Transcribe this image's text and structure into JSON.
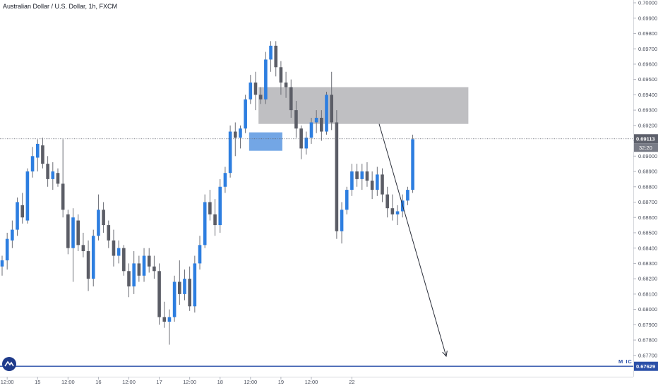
{
  "header": {
    "title": "Australian Dollar / U.S. Dollar, 1h, FXCM"
  },
  "colors": {
    "up": "#2d7ee0",
    "down": "#5b5d66",
    "wick": "#6b6d75",
    "price_line": "#5d606b",
    "support_line": "#2a4fa8",
    "zone": "#a9aaad",
    "box": "#5a97e0"
  },
  "price_tag": {
    "value": "0.69113",
    "countdown": "32:20"
  },
  "support_tag": {
    "value": "0.67629"
  },
  "annotation": {
    "text": "M IC"
  },
  "chart_data": {
    "type": "candlestick",
    "symbol": "Australian Dollar / U.S. Dollar",
    "interval": "1h",
    "source": "FXCM",
    "ylim": [
      0.6763,
      0.7
    ],
    "y_ticks": [
      "0.70000",
      "0.69900",
      "0.69800",
      "0.69700",
      "0.69600",
      "0.69500",
      "0.69400",
      "0.69300",
      "0.69200",
      "0.69100",
      "0.69000",
      "0.68900",
      "0.68800",
      "0.68700",
      "0.68600",
      "0.68500",
      "0.68400",
      "0.68300",
      "0.68200",
      "0.68100",
      "0.68000",
      "0.67900",
      "0.67800",
      "0.67700"
    ],
    "x_ticks": [
      {
        "label": "12:00",
        "bar": 1
      },
      {
        "label": "15",
        "bar": 7
      },
      {
        "label": "12:00",
        "bar": 13
      },
      {
        "label": "16",
        "bar": 19
      },
      {
        "label": "12:00",
        "bar": 25
      },
      {
        "label": "17",
        "bar": 31
      },
      {
        "label": "12:00",
        "bar": 37
      },
      {
        "label": "18",
        "bar": 43
      },
      {
        "label": "12:00",
        "bar": 49
      },
      {
        "label": "19",
        "bar": 55
      },
      {
        "label": "12:00",
        "bar": 61
      },
      {
        "label": "22",
        "bar": 69
      }
    ],
    "bar_count_visible": 74,
    "candles": [
      [
        0.6828,
        0.6835,
        0.6822,
        0.6832
      ],
      [
        0.6832,
        0.685,
        0.6826,
        0.6846
      ],
      [
        0.6845,
        0.6858,
        0.684,
        0.6852
      ],
      [
        0.6852,
        0.6873,
        0.6848,
        0.687
      ],
      [
        0.6868,
        0.6876,
        0.6856,
        0.686
      ],
      [
        0.6858,
        0.6892,
        0.6856,
        0.689
      ],
      [
        0.689,
        0.6906,
        0.6886,
        0.69
      ],
      [
        0.6899,
        0.6911,
        0.689,
        0.6908
      ],
      [
        0.6907,
        0.6912,
        0.6892,
        0.6895
      ],
      [
        0.6895,
        0.69,
        0.688,
        0.6885
      ],
      [
        0.6885,
        0.6896,
        0.6878,
        0.689
      ],
      [
        0.6889,
        0.6892,
        0.688,
        0.6882
      ],
      [
        0.6882,
        0.6911,
        0.686,
        0.6865
      ],
      [
        0.6862,
        0.6865,
        0.6836,
        0.684
      ],
      [
        0.684,
        0.6866,
        0.6818,
        0.686
      ],
      [
        0.6858,
        0.6862,
        0.6838,
        0.6842
      ],
      [
        0.6842,
        0.685,
        0.6834,
        0.6838
      ],
      [
        0.6838,
        0.6845,
        0.6812,
        0.682
      ],
      [
        0.682,
        0.6852,
        0.6815,
        0.6848
      ],
      [
        0.6848,
        0.6875,
        0.6845,
        0.6865
      ],
      [
        0.6865,
        0.687,
        0.685,
        0.6855
      ],
      [
        0.6855,
        0.6858,
        0.684,
        0.6845
      ],
      [
        0.6845,
        0.6852,
        0.6828,
        0.6835
      ],
      [
        0.6835,
        0.6845,
        0.683,
        0.684
      ],
      [
        0.684,
        0.6842,
        0.6822,
        0.6825
      ],
      [
        0.6825,
        0.683,
        0.6808,
        0.6815
      ],
      [
        0.6815,
        0.6838,
        0.681,
        0.683
      ],
      [
        0.683,
        0.6835,
        0.6818,
        0.6822
      ],
      [
        0.6822,
        0.684,
        0.6818,
        0.6835
      ],
      [
        0.6835,
        0.684,
        0.6824,
        0.6828
      ],
      [
        0.6828,
        0.6835,
        0.682,
        0.6825
      ],
      [
        0.6825,
        0.683,
        0.679,
        0.6795
      ],
      [
        0.6795,
        0.6805,
        0.6788,
        0.6792
      ],
      [
        0.6792,
        0.68,
        0.6777,
        0.6795
      ],
      [
        0.6795,
        0.6822,
        0.6792,
        0.6818
      ],
      [
        0.6818,
        0.6832,
        0.6803,
        0.681
      ],
      [
        0.681,
        0.6826,
        0.6806,
        0.682
      ],
      [
        0.682,
        0.6828,
        0.6799,
        0.6802
      ],
      [
        0.6802,
        0.6835,
        0.6798,
        0.683
      ],
      [
        0.683,
        0.6848,
        0.6826,
        0.6842
      ],
      [
        0.6842,
        0.6875,
        0.684,
        0.687
      ],
      [
        0.687,
        0.6878,
        0.6858,
        0.6862
      ],
      [
        0.6862,
        0.6872,
        0.6848,
        0.6855
      ],
      [
        0.6855,
        0.6885,
        0.685,
        0.688
      ],
      [
        0.688,
        0.6893,
        0.6876,
        0.6889
      ],
      [
        0.6889,
        0.692,
        0.6886,
        0.6916
      ],
      [
        0.6916,
        0.6922,
        0.69,
        0.6912
      ],
      [
        0.6912,
        0.692,
        0.6905,
        0.6918
      ],
      [
        0.6918,
        0.694,
        0.6915,
        0.6937
      ],
      [
        0.6937,
        0.6953,
        0.6934,
        0.6948
      ],
      [
        0.6948,
        0.6955,
        0.693,
        0.694
      ],
      [
        0.694,
        0.6945,
        0.6934,
        0.6937
      ],
      [
        0.6937,
        0.6968,
        0.6934,
        0.6963
      ],
      [
        0.6963,
        0.6975,
        0.6955,
        0.6972
      ],
      [
        0.6972,
        0.6975,
        0.6952,
        0.6958
      ],
      [
        0.6958,
        0.6962,
        0.694,
        0.6948
      ],
      [
        0.6948,
        0.6955,
        0.6938,
        0.6945
      ],
      [
        0.6945,
        0.695,
        0.6925,
        0.693
      ],
      [
        0.693,
        0.6936,
        0.6912,
        0.6918
      ],
      [
        0.6918,
        0.692,
        0.6898,
        0.6905
      ],
      [
        0.6905,
        0.6916,
        0.6901,
        0.6912
      ],
      [
        0.6912,
        0.6925,
        0.6908,
        0.6922
      ],
      [
        0.6922,
        0.693,
        0.6915,
        0.6925
      ],
      [
        0.6925,
        0.693,
        0.691,
        0.6916
      ],
      [
        0.6916,
        0.6942,
        0.6914,
        0.694
      ],
      [
        0.694,
        0.6955,
        0.6917,
        0.6922
      ],
      [
        0.6922,
        0.693,
        0.6846,
        0.6851
      ],
      [
        0.6851,
        0.687,
        0.6843,
        0.6865
      ],
      [
        0.6865,
        0.688,
        0.6862,
        0.6878
      ],
      [
        0.6878,
        0.6895,
        0.6874,
        0.689
      ],
      [
        0.689,
        0.6895,
        0.688,
        0.6885
      ],
      [
        0.6885,
        0.6895,
        0.6878,
        0.689
      ],
      [
        0.689,
        0.6896,
        0.688,
        0.6884
      ]
    ],
    "candles_tail": [
      [
        0.6884,
        0.689,
        0.6872,
        0.6878
      ],
      [
        0.6878,
        0.6893,
        0.6874,
        0.6888
      ],
      [
        0.6888,
        0.6892,
        0.687,
        0.6875
      ],
      [
        0.6875,
        0.688,
        0.686,
        0.6866
      ],
      [
        0.6866,
        0.6875,
        0.6858,
        0.6862
      ],
      [
        0.6862,
        0.6868,
        0.6855,
        0.6864
      ],
      [
        0.6864,
        0.6875,
        0.686,
        0.6871
      ],
      [
        0.6871,
        0.688,
        0.6868,
        0.6878
      ],
      [
        0.6878,
        0.6914,
        0.6876,
        0.6911
      ]
    ],
    "resistance_zone": {
      "price_top": 0.6945,
      "price_bottom": 0.6921
    },
    "entry_box": {
      "price_top": 0.69155,
      "price_bottom": 0.69035
    },
    "support_level": 0.67629,
    "last_price": 0.69113
  }
}
